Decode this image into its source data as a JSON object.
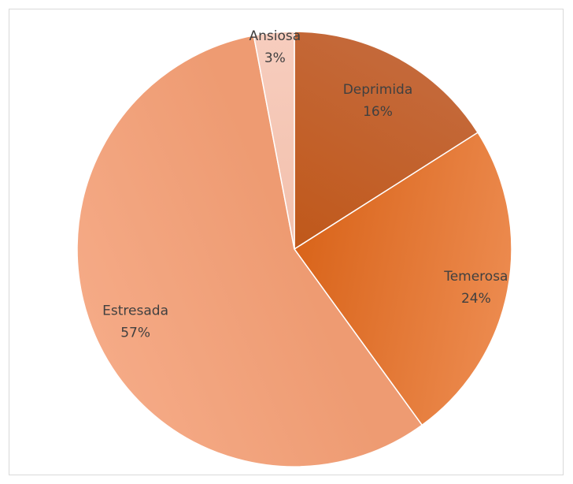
{
  "chart_data": {
    "type": "pie",
    "title": "",
    "slices": [
      {
        "label": "Deprimida",
        "value": 16,
        "value_label": "16%",
        "color": "#C0581A",
        "color_light": "#C4693A"
      },
      {
        "label": "Temerosa",
        "value": 24,
        "value_label": "24%",
        "color": "#D9641A",
        "color_light": "#EC8A4E"
      },
      {
        "label": "Estresada",
        "value": 57,
        "value_label": "57%",
        "color": "#EE9B72",
        "color_light": "#F5AA86"
      },
      {
        "label": "Ansiosa",
        "value": 3,
        "value_label": "3%",
        "color": "#F2C0AC",
        "color_light": "#F7CDBE"
      }
    ],
    "start_angle_deg": 0,
    "direction": "clockwise",
    "legend": "none"
  }
}
